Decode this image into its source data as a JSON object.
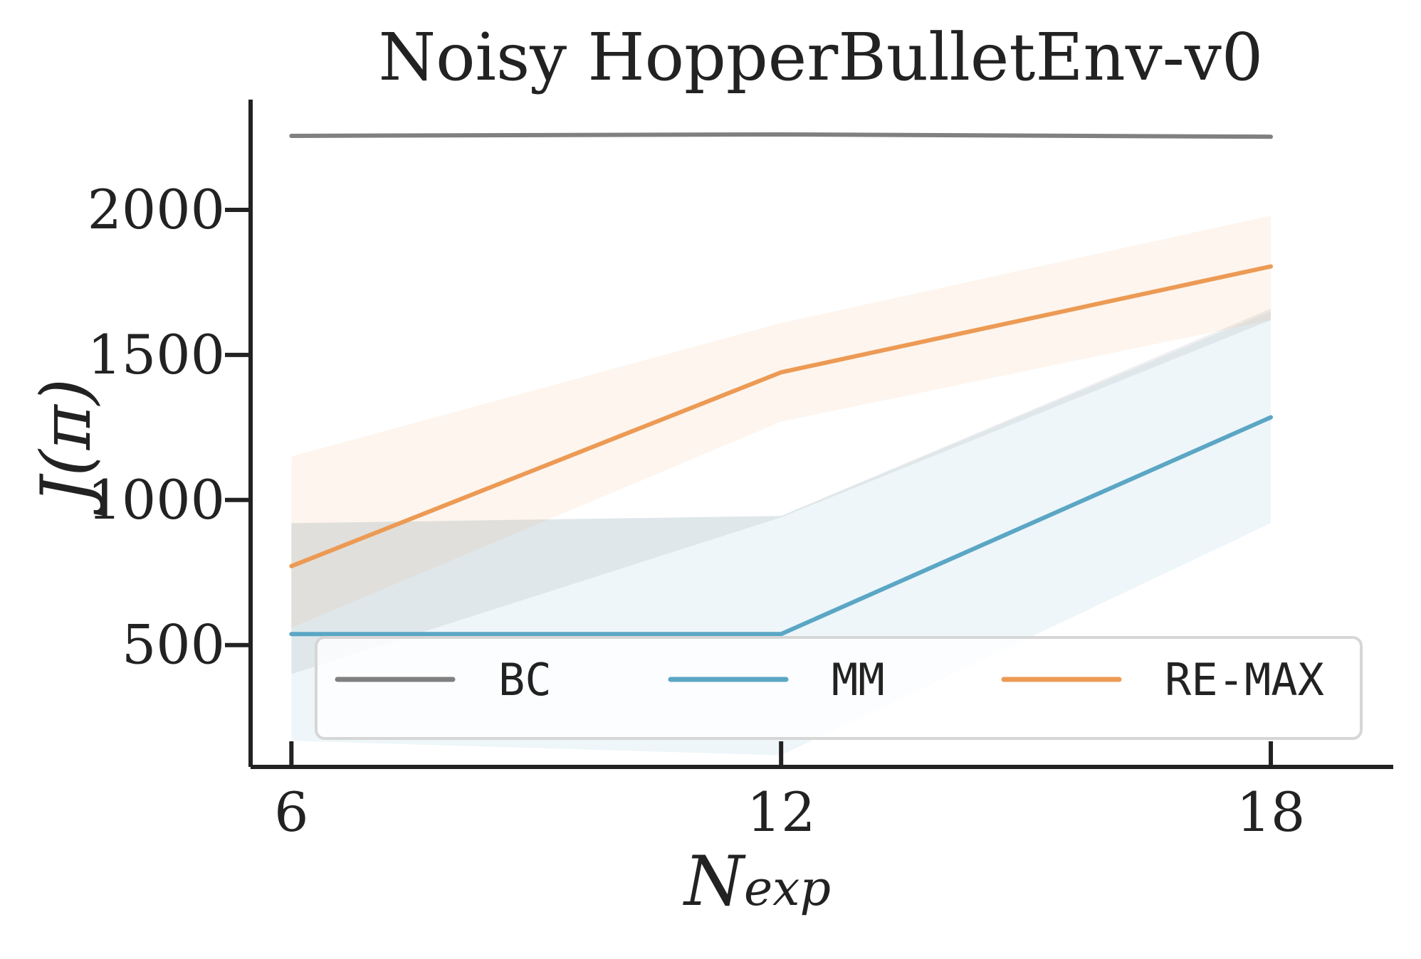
{
  "chart_data": {
    "type": "line",
    "title": "Noisy HopperBulletEnv-v0",
    "xlabel_main": "N",
    "xlabel_sub": "exp",
    "ylabel": "J(π)",
    "x": [
      6,
      12,
      18
    ],
    "xticks": [
      6,
      12,
      18
    ],
    "yticks": [
      500,
      1000,
      1500,
      2000
    ],
    "xlim": [
      5.5,
      19.5
    ],
    "ylim": [
      80,
      2380
    ],
    "grid": false,
    "legend_position": "bottom",
    "series": [
      {
        "name": "BC",
        "color": "#808080",
        "values": [
          2255,
          2260,
          2252
        ],
        "lower": [
          400,
          940,
          1620
        ],
        "upper": [
          920,
          945,
          1660
        ],
        "band_opacity": 0.13
      },
      {
        "name": "MM",
        "color": "#5ba6c5",
        "values": [
          538,
          538,
          1285
        ],
        "lower": [
          170,
          120,
          920
        ],
        "upper": [
          920,
          945,
          1650
        ],
        "band_opacity": 0.1
      },
      {
        "name": "RE-MAX",
        "color": "#ec9a54",
        "values": [
          772,
          1440,
          1805
        ],
        "lower": [
          560,
          1270,
          1620
        ],
        "upper": [
          1150,
          1610,
          1980
        ],
        "band_opacity": 0.1
      }
    ]
  }
}
